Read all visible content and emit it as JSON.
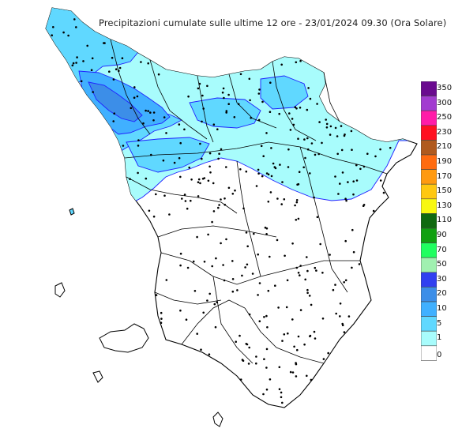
{
  "title": "Precipitazioni cumulate sulle ultime 12 ore - 23/01/2024 09.30 (Ora Solare)",
  "legend": {
    "classes": [
      {
        "label": "350",
        "color": "#6a0a8f"
      },
      {
        "label": "300",
        "color": "#a23cd0"
      },
      {
        "label": "250",
        "color": "#ff1ca8"
      },
      {
        "label": "230",
        "color": "#ff1020"
      },
      {
        "label": "210",
        "color": "#b05a1e"
      },
      {
        "label": "190",
        "color": "#ff6b10"
      },
      {
        "label": "170",
        "color": "#ff9a10"
      },
      {
        "label": "150",
        "color": "#ffc810"
      },
      {
        "label": "130",
        "color": "#f8f810"
      },
      {
        "label": "110",
        "color": "#106a10"
      },
      {
        "label": "90",
        "color": "#10a010"
      },
      {
        "label": "70",
        "color": "#20ff60"
      },
      {
        "label": "50",
        "color": "#a0f0b0"
      },
      {
        "label": "30",
        "color": "#3040f0"
      },
      {
        "label": "20",
        "color": "#3c8ee8"
      },
      {
        "label": "10",
        "color": "#40b0ff"
      },
      {
        "label": "5",
        "color": "#60d8ff"
      },
      {
        "label": "1",
        "color": "#a8fcfc"
      },
      {
        "label": "0",
        "color": "#ffffff"
      }
    ]
  },
  "map": {
    "region_outline_color": "#000000",
    "isoline_color": "#2020ff",
    "fill_light": "#a8fcfc",
    "fill_mid": "#60d8ff",
    "fill_high": "#40b0ff",
    "fill_peak": "#3c8ee8"
  }
}
